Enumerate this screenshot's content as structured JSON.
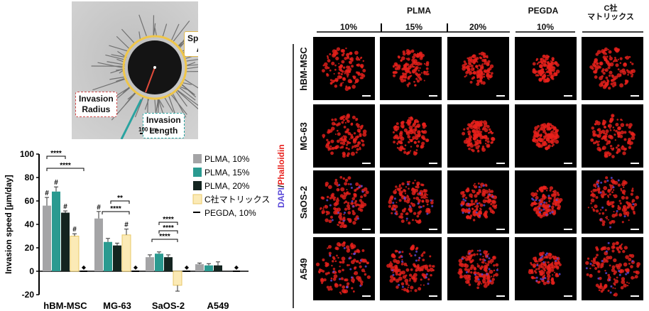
{
  "micrograph": {
    "labels": {
      "spheroid_area": "Spheroid\nArea",
      "invasion_radius": "Invasion\nRadius",
      "invasion_length": "Invasion\nLength"
    },
    "scale_bar": "100 µm"
  },
  "chart_data": {
    "type": "bar",
    "ylabel": "Invasion speed [µm/day]",
    "ylim": [
      -20,
      100
    ],
    "yticks": [
      -20,
      0,
      20,
      40,
      60,
      80,
      100
    ],
    "categories": [
      "hBM-MSC",
      "MG-63",
      "SaOS-2",
      "A549"
    ],
    "series": [
      {
        "name": "PLMA, 10%",
        "color": "#a4a4a6",
        "values": [
          56,
          45,
          12,
          6
        ],
        "errors": [
          7,
          6,
          2,
          1
        ]
      },
      {
        "name": "PLMA, 15%",
        "color": "#2a9a90",
        "values": [
          68,
          25,
          15,
          5
        ],
        "errors": [
          4,
          3,
          1.5,
          1.5
        ]
      },
      {
        "name": "PLMA, 20%",
        "color": "#142420",
        "values": [
          50,
          22,
          12,
          5
        ],
        "errors": [
          1.5,
          2,
          2,
          3
        ]
      },
      {
        "name": "C社マトリックス",
        "color": "#fbeab6",
        "values": [
          30,
          31,
          0,
          0
        ],
        "errors": [
          2,
          5,
          0,
          0
        ]
      },
      {
        "name": "PEGDA, 10%",
        "color": "#000000",
        "values": [
          0,
          0,
          0,
          0
        ],
        "errors": [
          0,
          0,
          0,
          0
        ]
      }
    ],
    "matrix_negative": {
      "category": "SaOS-2",
      "value": -12,
      "error": 5
    },
    "hash_marks": "#",
    "diamond_mark": "◆",
    "significance": [
      "****",
      "****",
      "**",
      "****",
      "****",
      "****",
      "****"
    ],
    "legend_position": "right"
  },
  "grid": {
    "group_headers": {
      "plma": "PLMA",
      "pegda": "PEGDA",
      "matrix": "C社\nマトリックス"
    },
    "column_headers": [
      "10%",
      "15%",
      "20%",
      "10%"
    ],
    "row_labels": [
      "hBM-MSC",
      "MG-63",
      "SaOS-2",
      "A549"
    ],
    "stain_label_dapi": "DAPI",
    "stain_label_sep": "/",
    "stain_label_phalloidin": "Phalloidin",
    "colors": {
      "dapi": "#5a48d8",
      "phalloidin": "#e8201c"
    }
  }
}
